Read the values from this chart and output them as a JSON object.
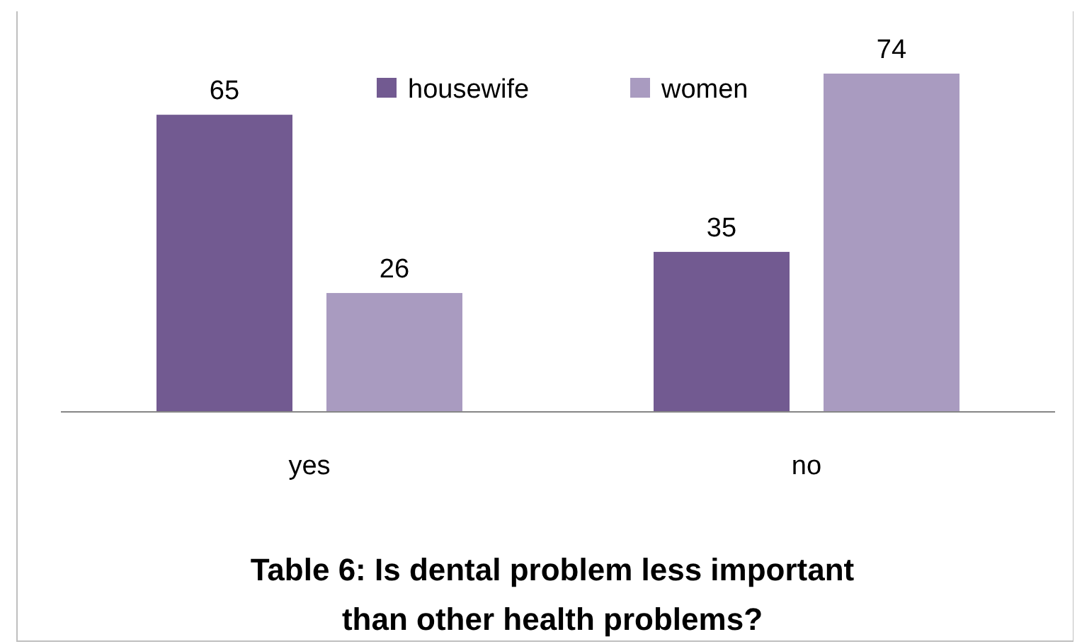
{
  "chart_data": {
    "type": "bar",
    "title": "Table 6: Is dental problem less important\nthan other health problems?",
    "categories": [
      "yes",
      "no"
    ],
    "series": [
      {
        "name": "housewife",
        "color": "#725a91",
        "values": [
          65,
          35
        ]
      },
      {
        "name": "women",
        "color": "#a99bc0",
        "values": [
          26,
          74
        ]
      }
    ],
    "data_labels": true,
    "legend": "top"
  }
}
